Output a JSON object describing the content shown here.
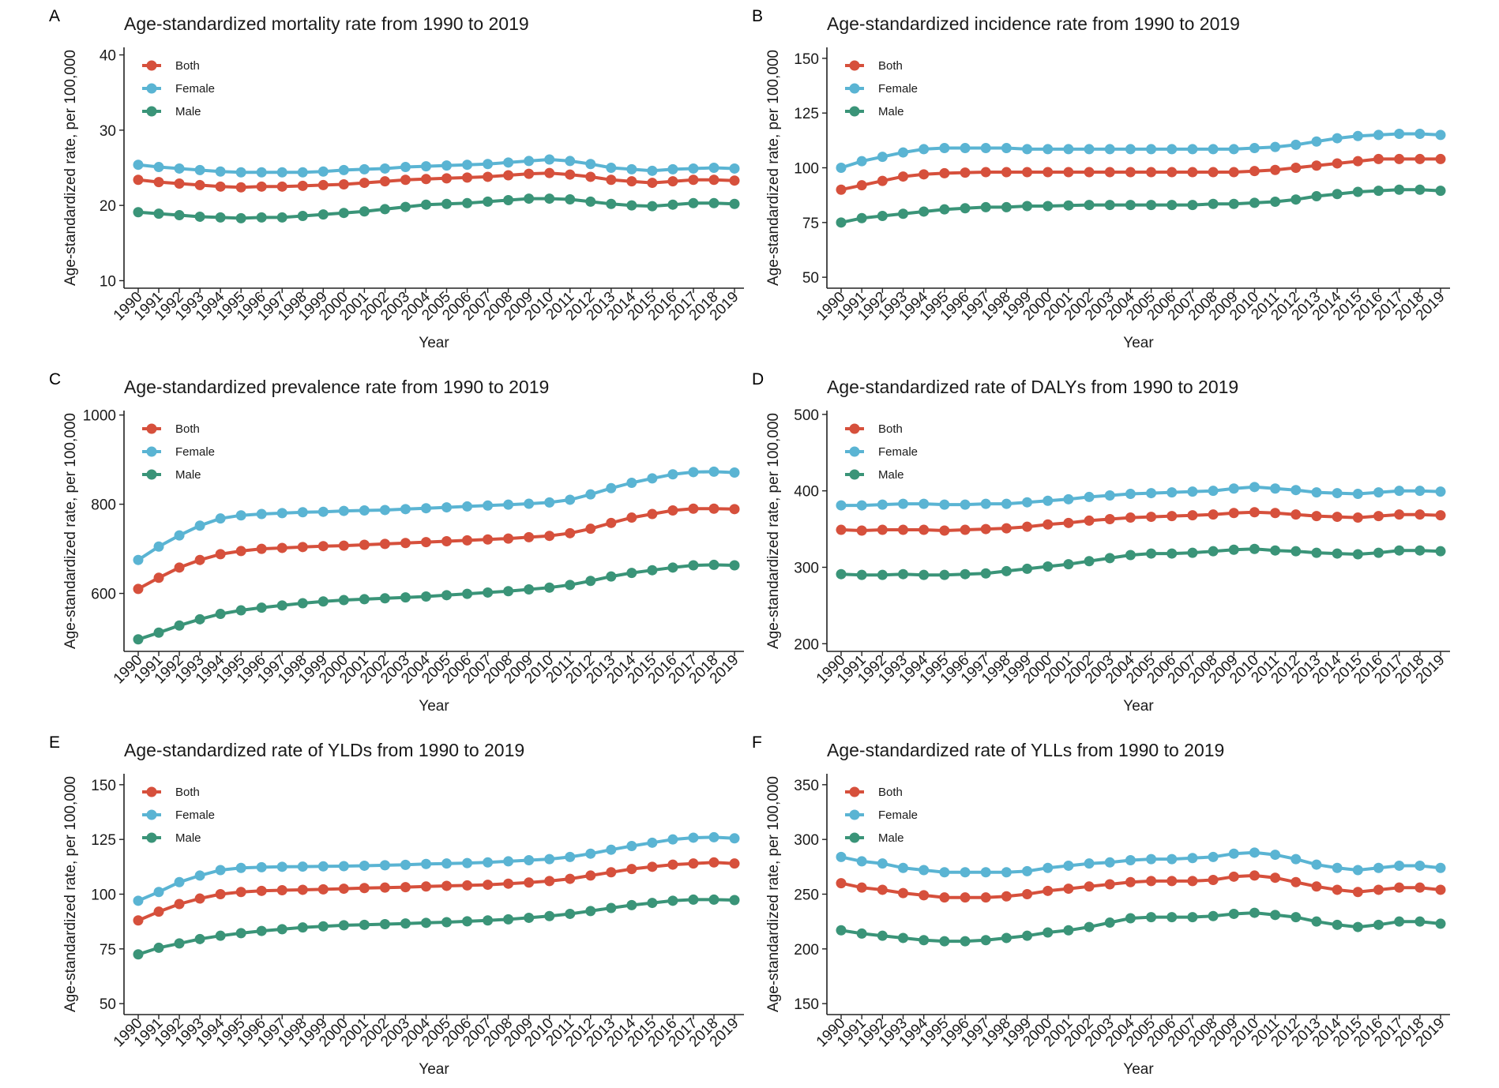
{
  "colors": {
    "Both": "#d6503c",
    "Female": "#5ab4d3",
    "Male": "#3a9478"
  },
  "years": [
    "1990",
    "1991",
    "1992",
    "1993",
    "1994",
    "1995",
    "1996",
    "1997",
    "1998",
    "1999",
    "2000",
    "2001",
    "2002",
    "2003",
    "2004",
    "2005",
    "2006",
    "2007",
    "2008",
    "2009",
    "2010",
    "2011",
    "2012",
    "2013",
    "2014",
    "2015",
    "2016",
    "2017",
    "2018",
    "2019"
  ],
  "chart_data": [
    {
      "letter": "A",
      "type": "line",
      "title": "Age-standardized mortality rate from 1990 to 2019",
      "xlabel": "Year",
      "ylabel": "Age-standardized rate, per 100,000",
      "ylim": [
        9,
        41
      ],
      "yticks": [
        10,
        20,
        30,
        40
      ],
      "legend": "top-left",
      "grid": false,
      "series": [
        {
          "name": "Both",
          "values": [
            23.4,
            23.1,
            22.9,
            22.7,
            22.5,
            22.4,
            22.5,
            22.5,
            22.6,
            22.7,
            22.8,
            23.0,
            23.2,
            23.4,
            23.5,
            23.6,
            23.7,
            23.8,
            24.0,
            24.2,
            24.3,
            24.1,
            23.8,
            23.4,
            23.2,
            23.0,
            23.2,
            23.4,
            23.4,
            23.3
          ]
        },
        {
          "name": "Female",
          "values": [
            25.4,
            25.1,
            24.9,
            24.7,
            24.5,
            24.4,
            24.4,
            24.4,
            24.4,
            24.5,
            24.7,
            24.8,
            24.9,
            25.1,
            25.2,
            25.3,
            25.4,
            25.5,
            25.7,
            25.9,
            26.1,
            25.9,
            25.5,
            25.0,
            24.8,
            24.6,
            24.8,
            24.9,
            25.0,
            24.9
          ]
        },
        {
          "name": "Male",
          "values": [
            19.1,
            18.9,
            18.7,
            18.5,
            18.4,
            18.3,
            18.4,
            18.4,
            18.6,
            18.8,
            19.0,
            19.2,
            19.5,
            19.8,
            20.1,
            20.2,
            20.3,
            20.5,
            20.7,
            20.9,
            20.9,
            20.8,
            20.5,
            20.2,
            20.0,
            19.9,
            20.1,
            20.3,
            20.3,
            20.2
          ]
        }
      ]
    },
    {
      "letter": "B",
      "type": "line",
      "title": "Age-standardized incidence rate from 1990 to 2019",
      "xlabel": "Year",
      "ylabel": "Age-standardized rate, per 100,000",
      "ylim": [
        45,
        155
      ],
      "yticks": [
        50,
        75,
        100,
        125,
        150
      ],
      "legend": "top-left",
      "grid": false,
      "series": [
        {
          "name": "Both",
          "values": [
            90,
            92,
            94,
            96,
            97,
            97.5,
            97.8,
            98,
            98,
            98,
            98,
            98,
            98,
            98,
            98,
            98,
            98,
            98,
            98,
            98,
            98.5,
            99,
            100,
            101,
            102,
            103,
            104,
            104,
            104,
            104
          ]
        },
        {
          "name": "Female",
          "values": [
            100,
            103,
            105,
            107,
            108.5,
            109,
            109,
            109,
            109,
            108.5,
            108.5,
            108.5,
            108.5,
            108.5,
            108.5,
            108.5,
            108.5,
            108.5,
            108.5,
            108.5,
            109,
            109.5,
            110.5,
            112,
            113.5,
            114.5,
            115,
            115.5,
            115.5,
            115
          ]
        },
        {
          "name": "Male",
          "values": [
            75,
            77,
            78,
            79,
            80,
            81,
            81.5,
            82,
            82,
            82.5,
            82.5,
            82.8,
            83,
            83,
            83,
            83,
            83,
            83,
            83.5,
            83.5,
            84,
            84.5,
            85.5,
            87,
            88,
            89,
            89.5,
            90,
            90,
            89.5
          ]
        }
      ]
    },
    {
      "letter": "C",
      "type": "line",
      "title": "Age-standardized prevalence rate from 1990 to 2019",
      "xlabel": "Year",
      "ylabel": "Age-standardized rate, per 100,000",
      "ylim": [
        470,
        1010
      ],
      "yticks": [
        600,
        800,
        1000
      ],
      "legend": "top-left",
      "grid": false,
      "series": [
        {
          "name": "Both",
          "values": [
            610,
            635,
            658,
            675,
            688,
            695,
            700,
            702,
            704,
            706,
            707,
            709,
            711,
            713,
            715,
            717,
            719,
            721,
            723,
            726,
            729,
            735,
            745,
            758,
            770,
            778,
            786,
            790,
            790,
            789
          ]
        },
        {
          "name": "Female",
          "values": [
            675,
            705,
            730,
            752,
            768,
            775,
            778,
            780,
            782,
            783,
            785,
            786,
            787,
            789,
            791,
            793,
            795,
            797,
            799,
            801,
            804,
            810,
            822,
            836,
            848,
            858,
            867,
            872,
            873,
            871
          ]
        },
        {
          "name": "Male",
          "values": [
            497,
            512,
            528,
            542,
            554,
            562,
            568,
            573,
            578,
            582,
            585,
            587,
            589,
            591,
            593,
            596,
            599,
            602,
            605,
            609,
            613,
            619,
            628,
            638,
            646,
            652,
            658,
            663,
            664,
            663
          ]
        }
      ]
    },
    {
      "letter": "D",
      "type": "line",
      "title": "Age-standardized rate of DALYs from 1990 to 2019",
      "xlabel": "Year",
      "ylabel": "Age-standardized rate, per 100,000",
      "ylim": [
        190,
        505
      ],
      "yticks": [
        200,
        300,
        400,
        500
      ],
      "legend": "top-left",
      "grid": false,
      "series": [
        {
          "name": "Both",
          "values": [
            349,
            348,
            349,
            349,
            349,
            348,
            349,
            350,
            351,
            353,
            356,
            358,
            361,
            363,
            365,
            366,
            367,
            368,
            369,
            371,
            372,
            371,
            369,
            367,
            366,
            365,
            367,
            369,
            369,
            368
          ]
        },
        {
          "name": "Female",
          "values": [
            381,
            381,
            382,
            383,
            383,
            382,
            382,
            383,
            383,
            385,
            387,
            389,
            392,
            394,
            396,
            397,
            398,
            399,
            400,
            403,
            405,
            403,
            401,
            398,
            397,
            396,
            398,
            400,
            400,
            399
          ]
        },
        {
          "name": "Male",
          "values": [
            291,
            290,
            290,
            291,
            290,
            290,
            291,
            292,
            295,
            298,
            301,
            304,
            308,
            312,
            316,
            318,
            318,
            319,
            321,
            323,
            324,
            322,
            321,
            319,
            318,
            317,
            319,
            322,
            322,
            321
          ]
        }
      ]
    },
    {
      "letter": "E",
      "type": "line",
      "title": "Age-standardized rate of YLDs from 1990 to 2019",
      "xlabel": "Year",
      "ylabel": "Age-standardized rate, per 100,000",
      "ylim": [
        45,
        155
      ],
      "yticks": [
        50,
        75,
        100,
        125,
        150
      ],
      "legend": "top-left",
      "grid": false,
      "series": [
        {
          "name": "Both",
          "values": [
            88,
            92,
            95.5,
            98,
            100,
            101,
            101.5,
            101.8,
            102,
            102.2,
            102.5,
            102.8,
            103,
            103.2,
            103.5,
            103.8,
            104,
            104.3,
            104.8,
            105.3,
            106,
            107,
            108.5,
            110,
            111.5,
            112.5,
            113.5,
            114,
            114.5,
            114
          ]
        },
        {
          "name": "Female",
          "values": [
            97,
            101,
            105.5,
            108.5,
            111,
            112,
            112.3,
            112.5,
            112.6,
            112.7,
            112.8,
            113,
            113.2,
            113.4,
            113.8,
            114,
            114.2,
            114.5,
            115,
            115.5,
            116,
            117,
            118.5,
            120.3,
            122,
            123.5,
            125,
            125.8,
            126,
            125.5
          ]
        },
        {
          "name": "Male",
          "values": [
            72.5,
            75.5,
            77.5,
            79.5,
            81,
            82.2,
            83.2,
            84,
            84.8,
            85.3,
            85.8,
            86,
            86.3,
            86.6,
            86.9,
            87.2,
            87.6,
            88,
            88.5,
            89.2,
            90,
            91,
            92.3,
            93.7,
            95,
            96,
            97,
            97.5,
            97.5,
            97.3
          ]
        }
      ]
    },
    {
      "letter": "F",
      "type": "line",
      "title": "Age-standardized rate of YLLs from 1990 to 2019",
      "xlabel": "Year",
      "ylabel": "Age-standardized rate, per 100,000",
      "ylim": [
        140,
        360
      ],
      "yticks": [
        150,
        200,
        250,
        300,
        350
      ],
      "legend": "top-left",
      "grid": false,
      "series": [
        {
          "name": "Both",
          "values": [
            260,
            256,
            254,
            251,
            249,
            247,
            247,
            247,
            248,
            250,
            253,
            255,
            257,
            259,
            261,
            262,
            262,
            262,
            263,
            266,
            267,
            265,
            261,
            257,
            254,
            252,
            254,
            256,
            256,
            254
          ]
        },
        {
          "name": "Female",
          "values": [
            284,
            280,
            278,
            274,
            272,
            270,
            270,
            270,
            270,
            271,
            274,
            276,
            278,
            279,
            281,
            282,
            282,
            283,
            284,
            287,
            288,
            286,
            282,
            277,
            274,
            272,
            274,
            276,
            276,
            274
          ]
        },
        {
          "name": "Male",
          "values": [
            217,
            214,
            212,
            210,
            208,
            207,
            207,
            208,
            210,
            212,
            215,
            217,
            220,
            224,
            228,
            229,
            229,
            229,
            230,
            232,
            233,
            231,
            229,
            225,
            222,
            220,
            222,
            225,
            225,
            223
          ]
        }
      ]
    }
  ]
}
